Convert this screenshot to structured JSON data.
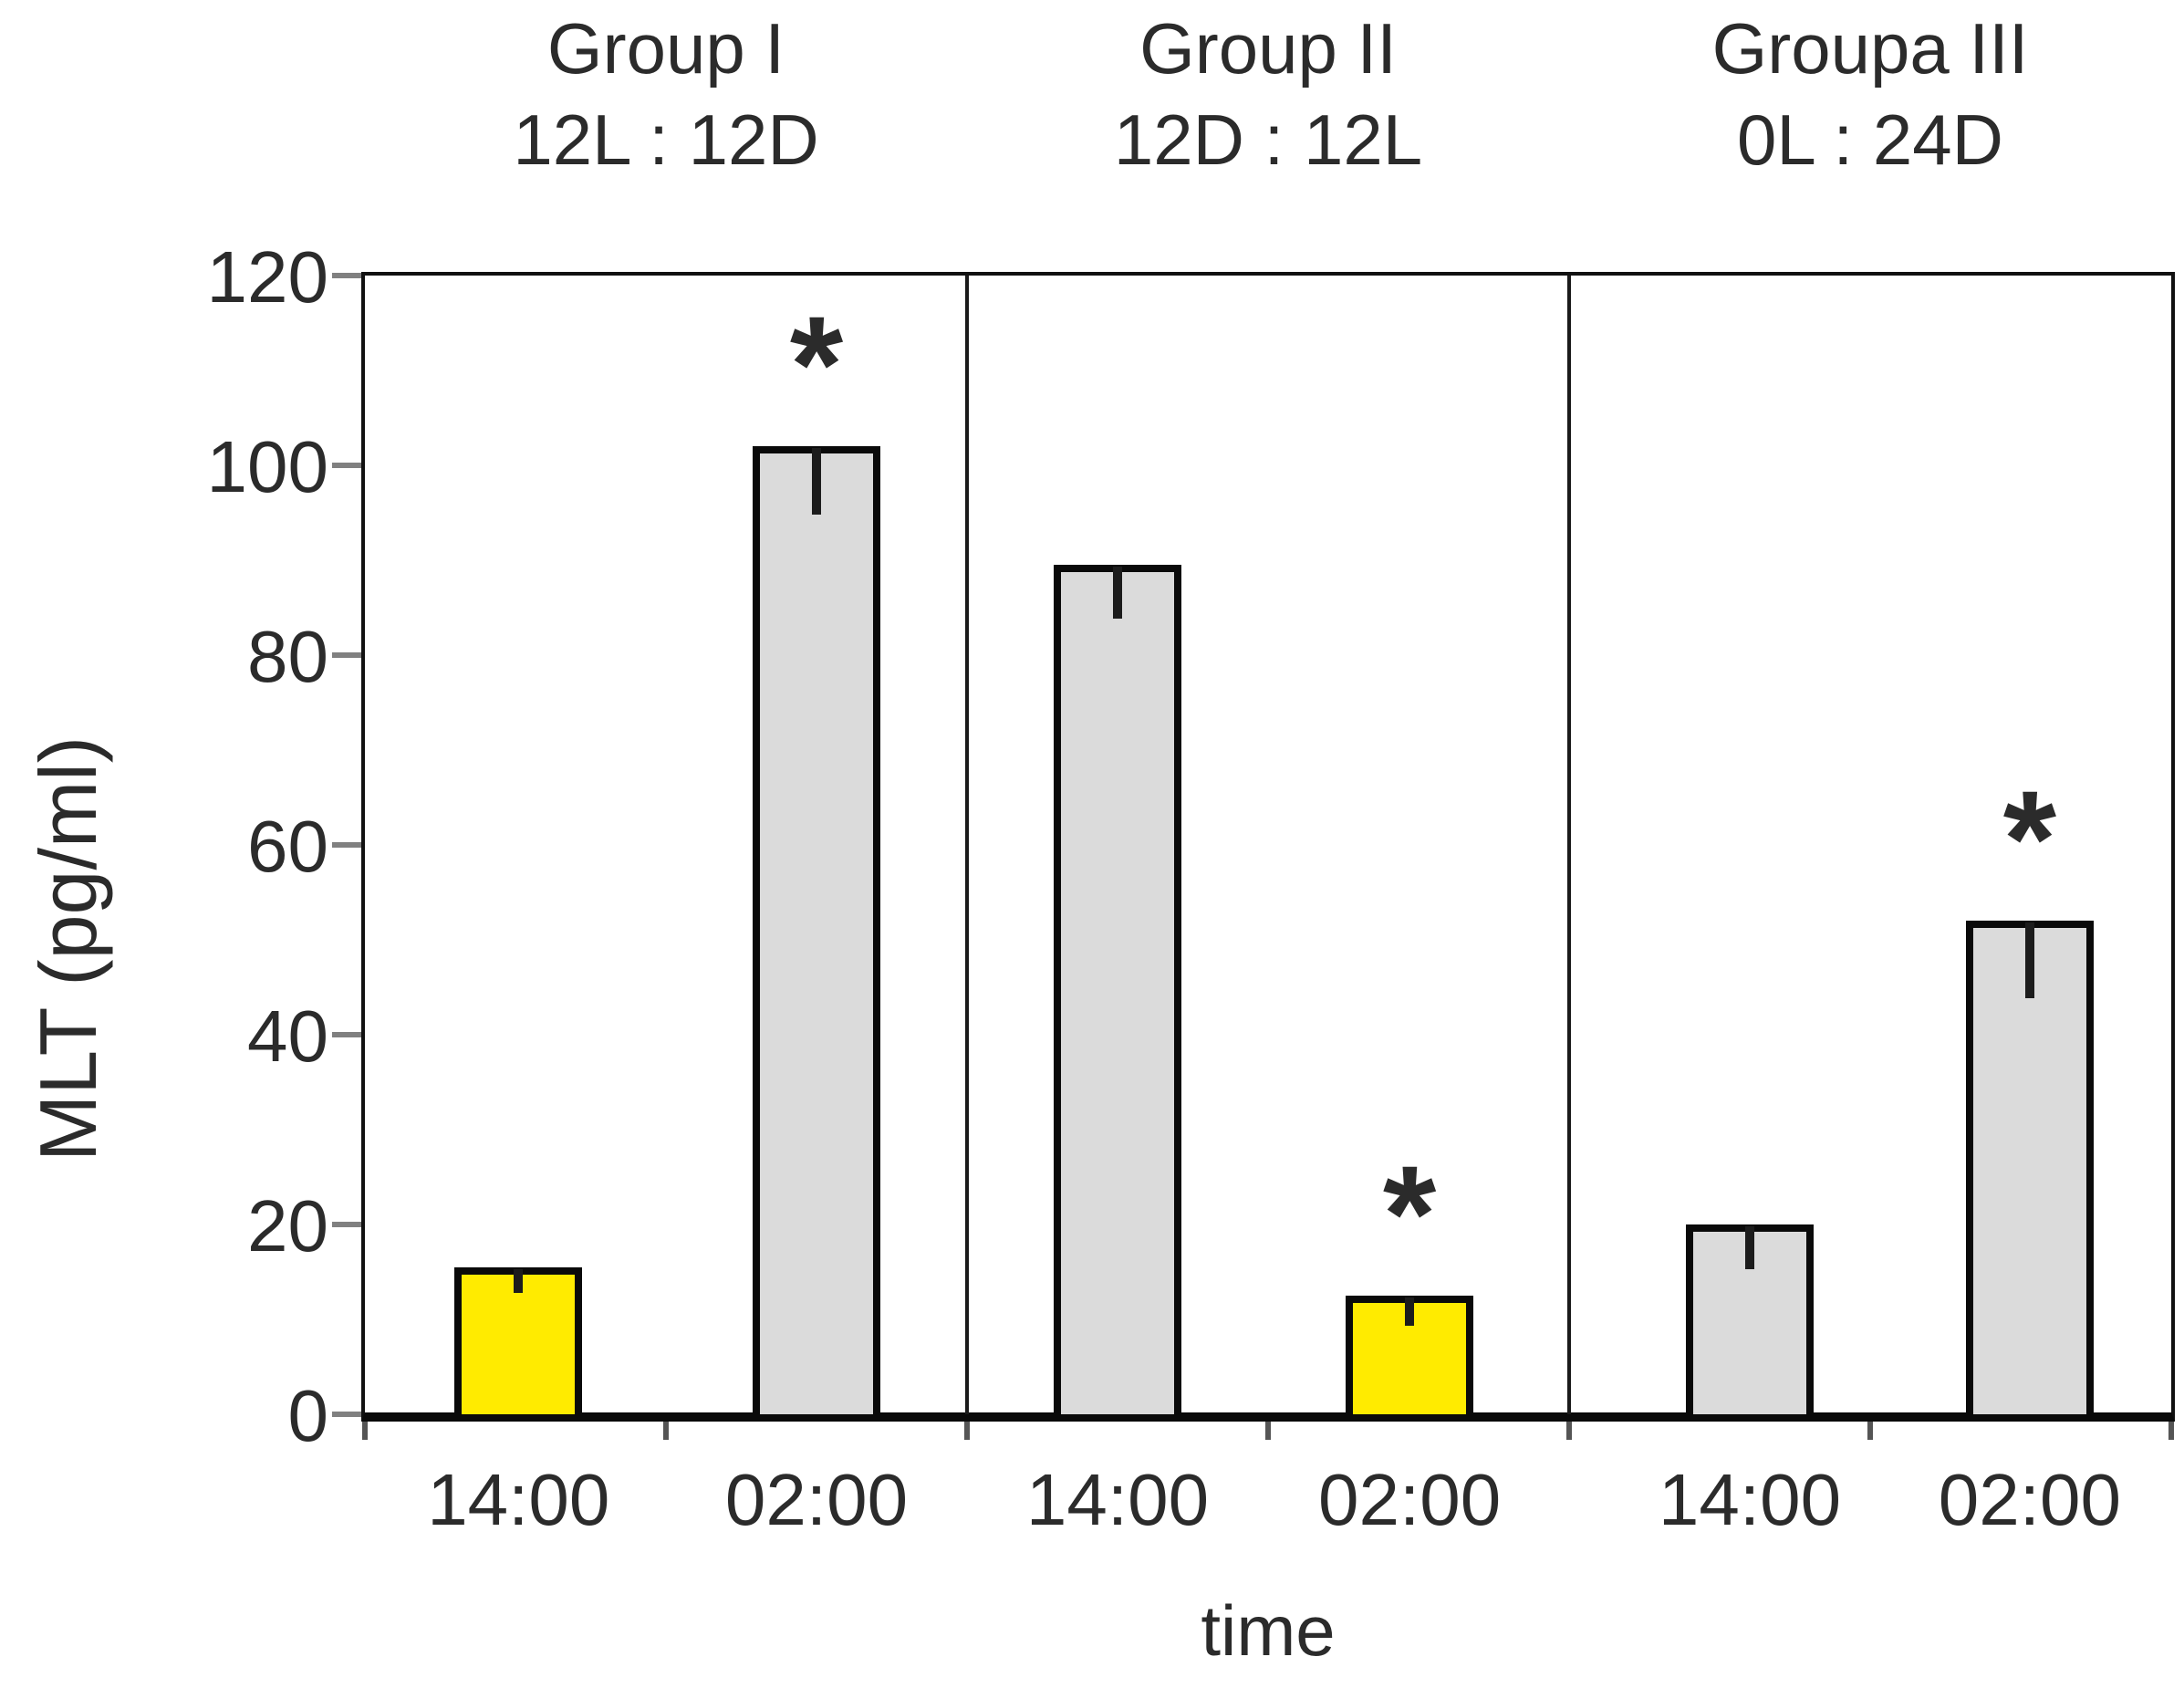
{
  "chart_data": {
    "type": "bar",
    "title": "",
    "ylabel": "MLT (pg/ml)",
    "xlabel": "time",
    "ylim": [
      0,
      120
    ],
    "yticks": [
      0,
      20,
      40,
      60,
      80,
      100,
      120
    ],
    "grid": false,
    "legend": false,
    "significance_marker": "*",
    "error_bar_direction": "down",
    "colors": {
      "yellow_bar": "#FFEB00",
      "gray_bar": "#DBDBDB",
      "bar_border": "#0a0a0a",
      "axis": "#111111",
      "text": "#2b2b2b",
      "tick": "#808080"
    },
    "groups": [
      {
        "name": "Group I",
        "photoperiod": "12L : 12D",
        "bars": [
          {
            "time": "14:00",
            "value": 15.5,
            "error": 2.5,
            "fill": "yellow",
            "significant": false
          },
          {
            "time": "02:00",
            "value": 102,
            "error": 7,
            "fill": "gray",
            "significant": true
          }
        ]
      },
      {
        "name": "Group II",
        "photoperiod": "12D : 12L",
        "bars": [
          {
            "time": "14:00",
            "value": 89.5,
            "error": 5.5,
            "fill": "gray",
            "significant": false
          },
          {
            "time": "02:00",
            "value": 12.5,
            "error": 3,
            "fill": "yellow",
            "significant": true
          }
        ]
      },
      {
        "name": "Groupa III",
        "photoperiod": "0L : 24D",
        "bars": [
          {
            "time": "14:00",
            "value": 20,
            "error": 4.5,
            "fill": "gray",
            "significant": false
          },
          {
            "time": "02:00",
            "value": 52,
            "error": 8,
            "fill": "gray",
            "significant": true
          }
        ]
      }
    ]
  }
}
